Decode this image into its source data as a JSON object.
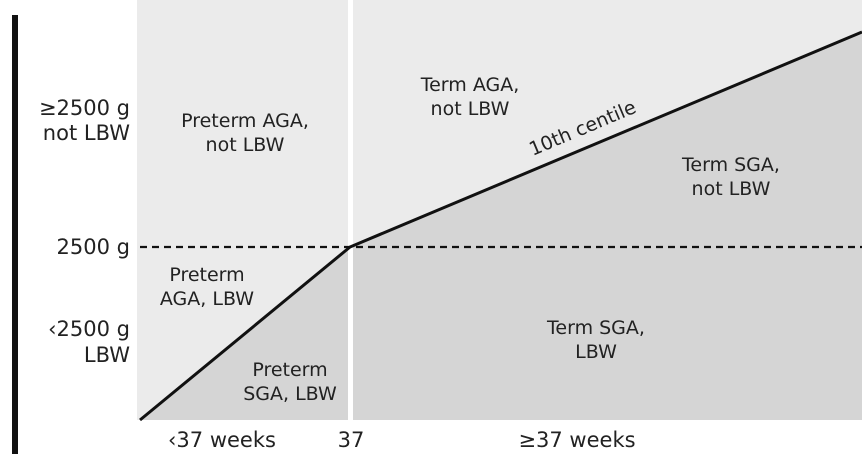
{
  "y_axis": {
    "labels": [
      [
        "≥2500 g",
        "not LBW"
      ],
      [
        "2500 g"
      ],
      [
        "‹2500 g",
        "LBW"
      ]
    ]
  },
  "x_axis": {
    "labels": [
      "‹37 weeks",
      "37",
      "≥37 weeks"
    ]
  },
  "regions": [
    {
      "label": [
        "Preterm AGA,",
        "not LBW"
      ]
    },
    {
      "label": [
        "Term AGA,",
        "not LBW"
      ]
    },
    {
      "label": [
        "Term SGA,",
        "not LBW"
      ]
    },
    {
      "label": [
        "Preterm",
        "AGA, LBW"
      ]
    },
    {
      "label": [
        "Preterm",
        "SGA, LBW"
      ]
    },
    {
      "label": [
        "Term SGA,",
        "LBW"
      ]
    }
  ],
  "curve_label": "10th centile"
}
